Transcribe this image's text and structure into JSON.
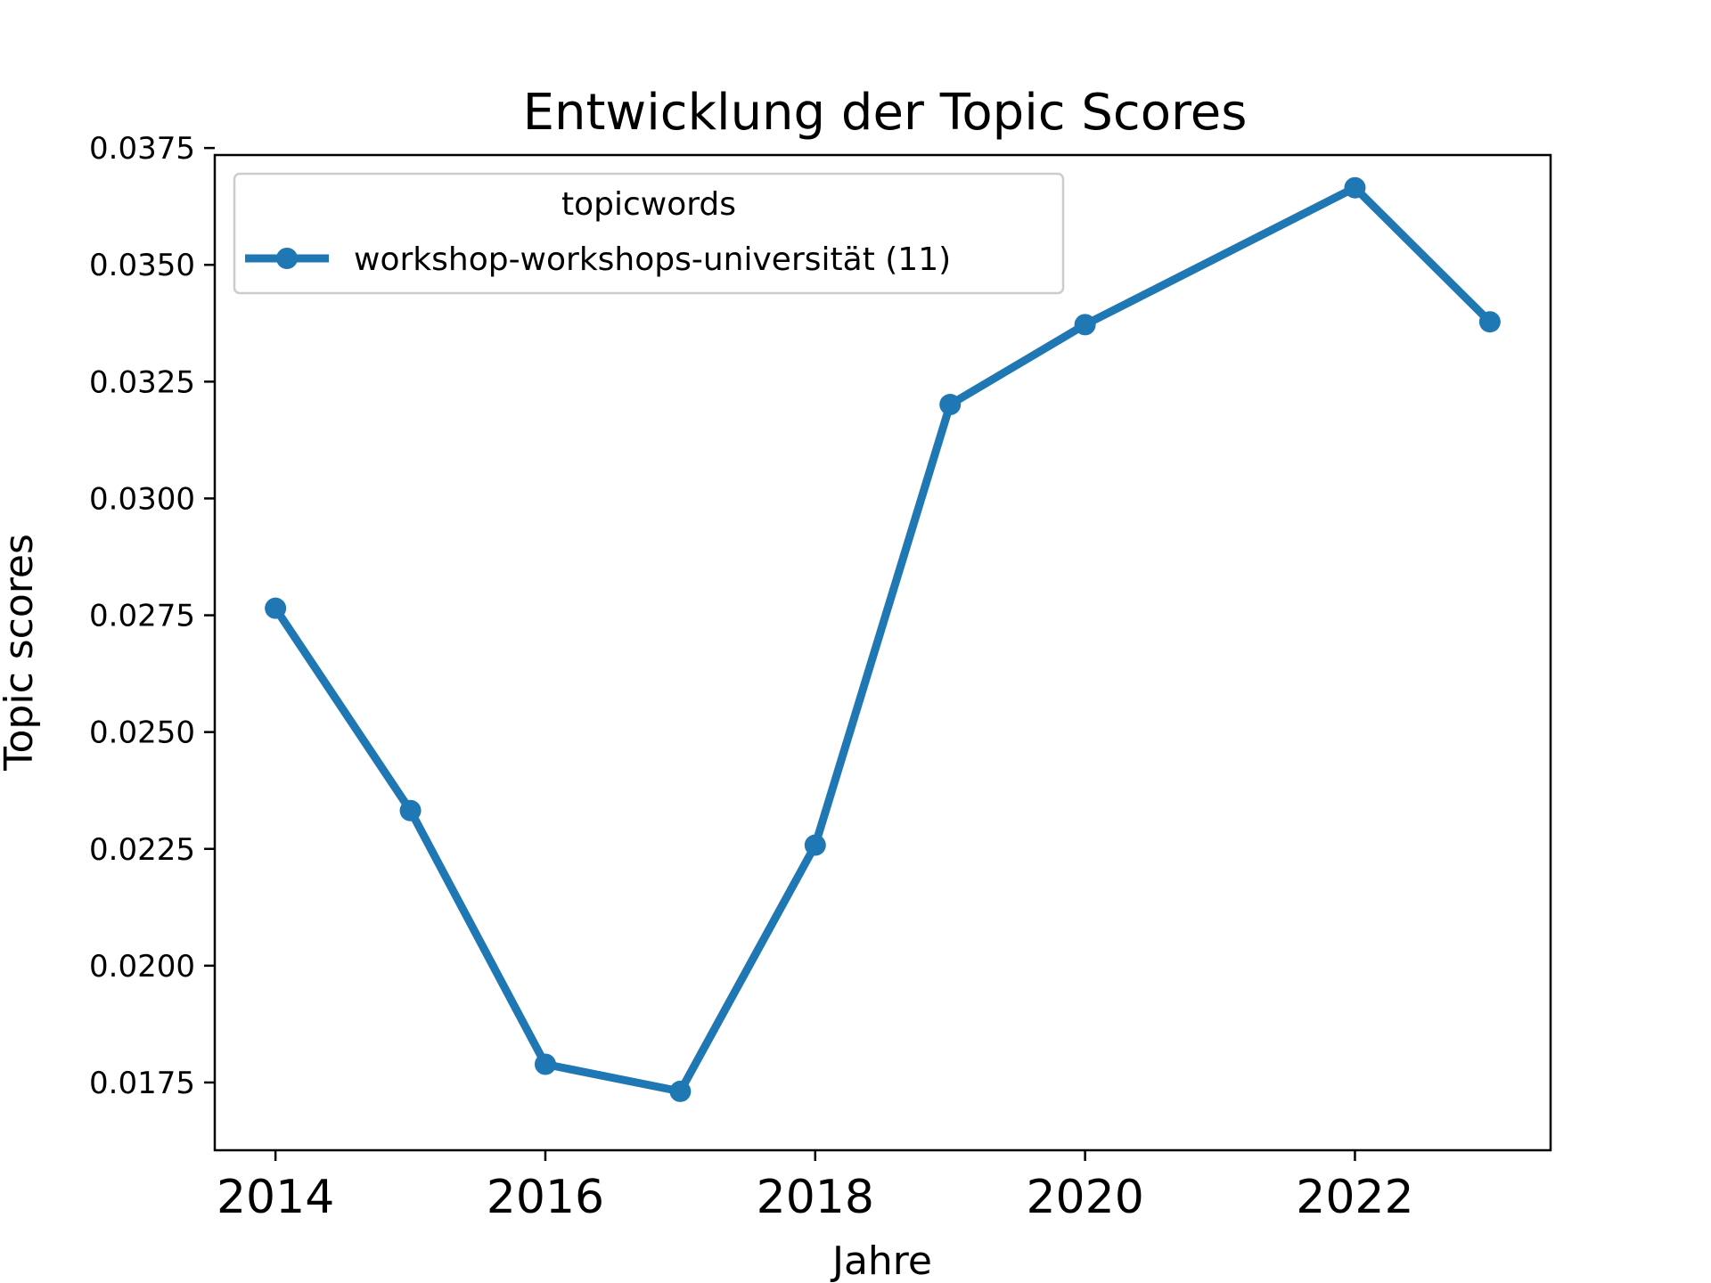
{
  "chart_data": {
    "type": "line",
    "title": "Entwicklung der Topic Scores",
    "xlabel": "Jahre",
    "ylabel": "Topic scores",
    "xlim": [
      2013.55,
      2023.45
    ],
    "ylim": [
      0.01605,
      0.03735
    ],
    "xticks": [
      2014,
      2016,
      2018,
      2020,
      2022
    ],
    "xtick_labels": [
      "2014",
      "2016",
      "2018",
      "2020",
      "2022"
    ],
    "yticks": [
      0.0175,
      0.02,
      0.0225,
      0.025,
      0.0275,
      0.03,
      0.0325,
      0.035,
      0.0375
    ],
    "ytick_labels": [
      "0.0175",
      "0.0200",
      "0.0225",
      "0.0250",
      "0.0275",
      "0.0300",
      "0.0325",
      "0.0350",
      "0.0375"
    ],
    "grid": false,
    "legend": {
      "title": "topicwords",
      "placement": "upper-left"
    },
    "series": [
      {
        "name": "workshop-workshops-universität (11)",
        "color": "#1f77b4",
        "marker": "circle",
        "x": [
          2014,
          2015,
          2016,
          2017,
          2018,
          2019,
          2020,
          2022,
          2023
        ],
        "y": [
          0.02765,
          0.02332,
          0.01789,
          0.01731,
          0.02258,
          0.03201,
          0.03372,
          0.03665,
          0.03378
        ]
      }
    ]
  }
}
